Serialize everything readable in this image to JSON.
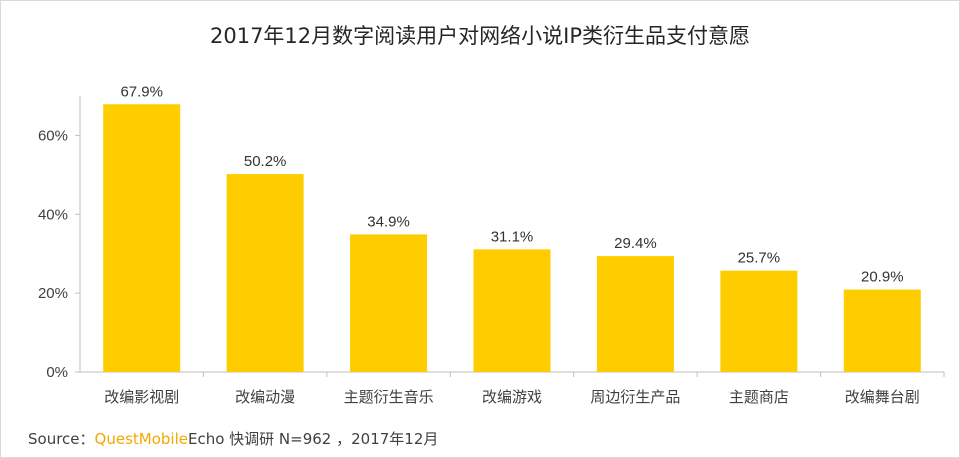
{
  "title": "2017年12月数字阅读用户对网络小说IP类衍生品支付意愿",
  "source": {
    "prefix": "Source：",
    "brand": "QuestMobile",
    "suffix": "Echo 快调研  N=962 ，2017年12月"
  },
  "colors": {
    "bar": "#FFCC00",
    "axis": "#bfbfbf",
    "brand": "#F2A900"
  },
  "chart_data": {
    "type": "bar",
    "title": "2017年12月数字阅读用户对网络小说IP类衍生品支付意愿",
    "categories": [
      "改编影视剧",
      "改编动漫",
      "主题衍生音乐",
      "改编游戏",
      "周边衍生产品",
      "主题商店",
      "改编舞台剧"
    ],
    "values": [
      67.9,
      50.2,
      34.9,
      31.1,
      29.4,
      25.7,
      20.9
    ],
    "value_labels": [
      "67.9%",
      "50.2%",
      "34.9%",
      "31.1%",
      "29.4%",
      "25.7%",
      "20.9%"
    ],
    "y_ticks": [
      0,
      20,
      40,
      60
    ],
    "y_tick_labels": [
      "0%",
      "20%",
      "40%",
      "60%"
    ],
    "ylim": [
      0,
      70
    ],
    "xlabel": "",
    "ylabel": "",
    "grid": false,
    "legend": "none"
  }
}
